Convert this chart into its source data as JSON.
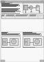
{
  "bg_color": "#f0f0f0",
  "page_color": "#ffffff",
  "text_color": "#222222",
  "line_color": "#555555",
  "figsize": [
    0.64,
    0.91
  ],
  "dpi": 100,
  "header_bg": "#c0c0c0",
  "header_text_color": "#111111",
  "diagram_bg": "#e8e8e8",
  "table_line_color": "#888888",
  "light_gray": "#cccccc",
  "mid_gray": "#aaaaaa",
  "dark_gray": "#555555"
}
